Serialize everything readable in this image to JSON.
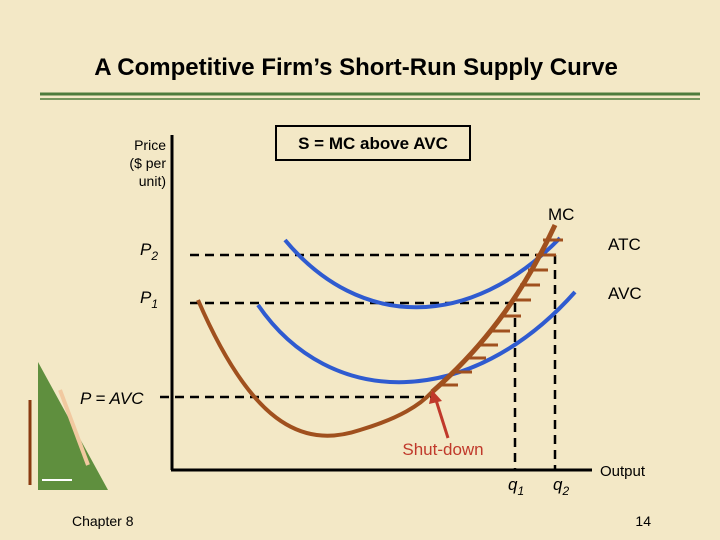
{
  "header": {
    "title": "A Competitive Firm’s Short-Run Supply Curve"
  },
  "axes": {
    "y_label": [
      "Price",
      "($ per",
      "unit)"
    ],
    "x_label": "Output"
  },
  "box": "S = MC above AVC",
  "curves": {
    "mc": "MC",
    "atc": "ATC",
    "avc": "AVC"
  },
  "prices": {
    "p2": {
      "base": "P",
      "sub": "2"
    },
    "p1": {
      "base": "P",
      "sub": "1"
    },
    "shutdown_price": "P = AVC"
  },
  "quantities": {
    "q1": {
      "base": "q",
      "sub": "1"
    },
    "q2": {
      "base": "q",
      "sub": "2"
    }
  },
  "annotation": "Shut-down",
  "footer": {
    "chapter": "Chapter 8",
    "page": "14"
  }
}
